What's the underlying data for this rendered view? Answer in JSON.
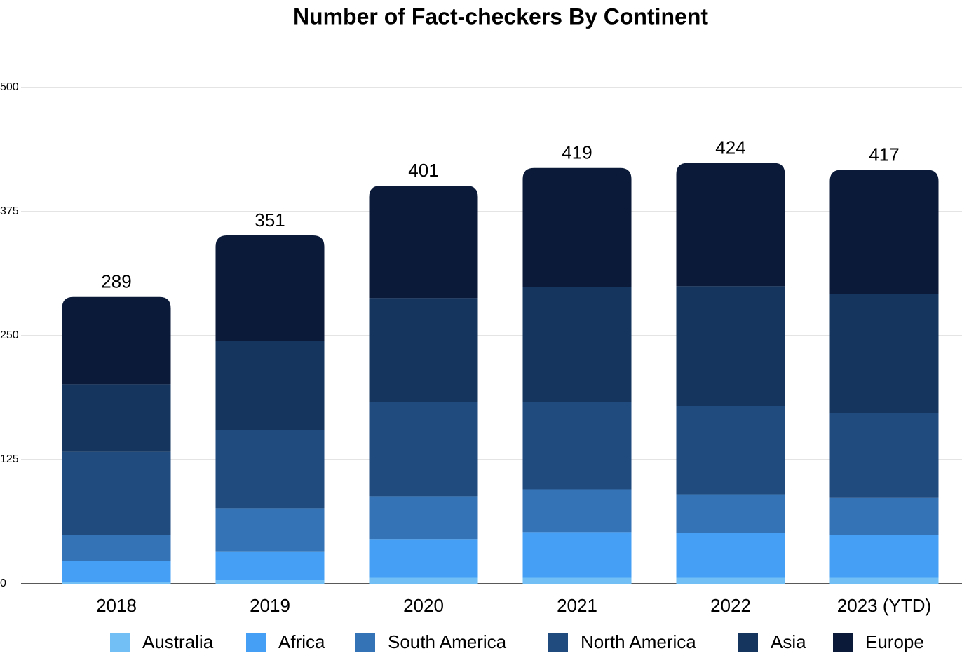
{
  "chart_data": {
    "type": "stacked_bar",
    "title": "Number of Fact-checkers By Continent",
    "categories": [
      "2018",
      "2019",
      "2020",
      "2021",
      "2022",
      "2023 (YTD)"
    ],
    "series": [
      {
        "name": "Australia",
        "color": "#72bff5",
        "values": [
          2,
          4,
          6,
          6,
          6,
          6
        ]
      },
      {
        "name": "Africa",
        "color": "#45a0f5",
        "values": [
          21,
          28,
          39,
          46,
          45,
          43
        ]
      },
      {
        "name": "South America",
        "color": "#3473b6",
        "values": [
          26,
          44,
          43,
          43,
          39,
          38
        ]
      },
      {
        "name": "North America",
        "color": "#1f4b7f",
        "values": [
          84,
          79,
          95,
          88,
          89,
          85
        ]
      },
      {
        "name": "Asia",
        "color": "#15345e",
        "values": [
          68,
          90,
          105,
          116,
          121,
          120
        ]
      },
      {
        "name": "Europe",
        "color": "#0a1a38",
        "values": [
          88,
          106,
          113,
          120,
          124,
          125
        ]
      }
    ],
    "totals": [
      289,
      351,
      401,
      419,
      424,
      417
    ],
    "ylim": [
      0,
      500
    ],
    "yticks": [
      0,
      125,
      250,
      375,
      500
    ],
    "grid": true,
    "legend": "bottom"
  }
}
